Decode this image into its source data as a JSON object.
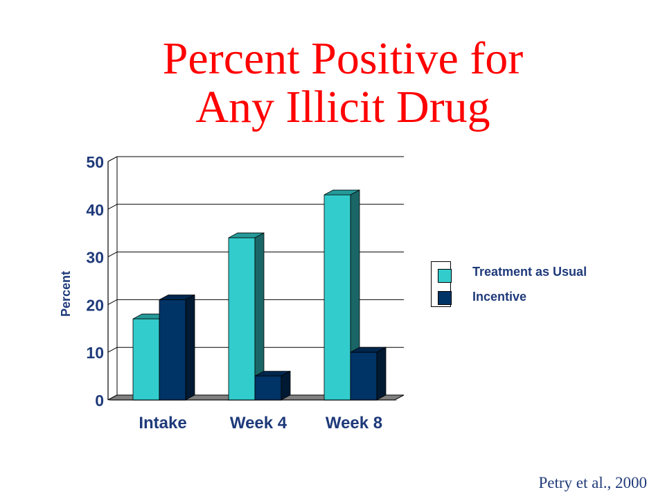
{
  "slide": {
    "title_line1": "Percent Positive for",
    "title_line2": "Any Illicit Drug",
    "citation": "Petry et al., 2000"
  },
  "colors": {
    "title": "#ff0000",
    "axis_text": "#1f3a7a",
    "treatment_as_usual": "#33cccc",
    "incentive": "#003366",
    "floor": "#808080",
    "citation": "#1f3a7a"
  },
  "chart_data": {
    "type": "bar",
    "title": "",
    "ylabel": "Percent",
    "xlabel": "",
    "ylim": [
      0,
      50
    ],
    "yticks": [
      0,
      10,
      20,
      30,
      40,
      50
    ],
    "categories": [
      "Intake",
      "Week 4",
      "Week 8"
    ],
    "series": [
      {
        "name": "Treatment as Usual",
        "values": [
          17,
          34,
          43
        ]
      },
      {
        "name": "Incentive",
        "values": [
          21,
          5,
          10
        ]
      }
    ],
    "grid": true,
    "legend": "right",
    "style": "3d"
  }
}
